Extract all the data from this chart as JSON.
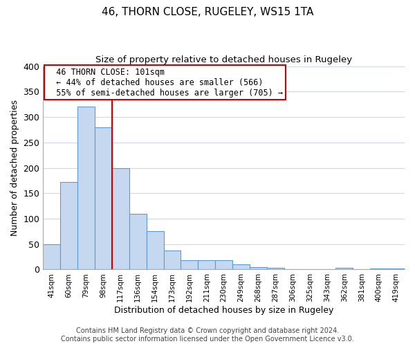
{
  "title": "46, THORN CLOSE, RUGELEY, WS15 1TA",
  "subtitle": "Size of property relative to detached houses in Rugeley",
  "xlabel": "Distribution of detached houses by size in Rugeley",
  "ylabel": "Number of detached properties",
  "footer_line1": "Contains HM Land Registry data © Crown copyright and database right 2024.",
  "footer_line2": "Contains public sector information licensed under the Open Government Licence v3.0.",
  "bin_labels": [
    "41sqm",
    "60sqm",
    "79sqm",
    "98sqm",
    "117sqm",
    "136sqm",
    "154sqm",
    "173sqm",
    "192sqm",
    "211sqm",
    "230sqm",
    "249sqm",
    "268sqm",
    "287sqm",
    "306sqm",
    "325sqm",
    "343sqm",
    "362sqm",
    "381sqm",
    "400sqm",
    "419sqm"
  ],
  "bar_values": [
    50,
    172,
    320,
    280,
    200,
    110,
    75,
    38,
    18,
    18,
    18,
    10,
    5,
    3,
    0,
    0,
    0,
    3,
    0,
    2,
    2
  ],
  "bar_color": "#c5d8f0",
  "bar_edge_color": "#5b9bd5",
  "vline_x": 3.5,
  "vline_color": "#cc0000",
  "annotation_title": "46 THORN CLOSE: 101sqm",
  "annotation_line1": "← 44% of detached houses are smaller (566)",
  "annotation_line2": "55% of semi-detached houses are larger (705) →",
  "annotation_box_edge": "#cc0000",
  "ylim": [
    0,
    400
  ],
  "yticks": [
    0,
    50,
    100,
    150,
    200,
    250,
    300,
    350,
    400
  ],
  "background_color": "#ffffff",
  "grid_color": "#d0d8e8"
}
